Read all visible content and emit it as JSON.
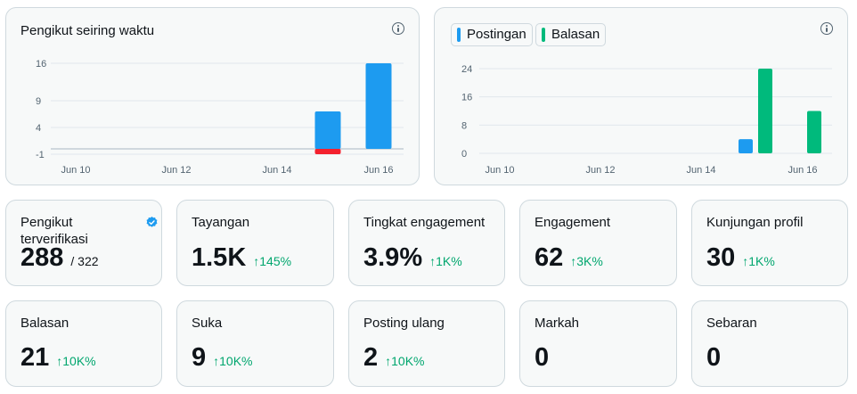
{
  "followers_chart": {
    "title": "Pengikut seiring waktu",
    "icon": "info-icon",
    "chart_data": {
      "type": "bar",
      "y_ticks": [
        16,
        9,
        4,
        -1
      ],
      "x_labels": [
        "Jun 10",
        "Jun 12",
        "Jun 14",
        "Jun 16"
      ],
      "series": [
        {
          "values_by_day": {
            "Jun 15": 7,
            "Jun 16": 16
          },
          "color": "#1d9bf0"
        },
        {
          "values_by_day": {
            "Jun 15": -1
          },
          "color": "#f4212e"
        }
      ],
      "grid": true
    }
  },
  "activity_chart": {
    "icon": "info-icon",
    "legend": [
      {
        "label": "Postingan",
        "color": "#1d9bf0"
      },
      {
        "label": "Balasan",
        "color": "#00ba7c"
      }
    ],
    "chart_data": {
      "type": "bar",
      "y_ticks": [
        24,
        16,
        8,
        0
      ],
      "x_labels": [
        "Jun 10",
        "Jun 12",
        "Jun 14",
        "Jun 16"
      ],
      "series": [
        {
          "name": "Postingan",
          "values_by_day": {
            "Jun 15": 4
          },
          "color": "#1d9bf0"
        },
        {
          "name": "Balasan",
          "values_by_day": {
            "Jun 15": 24,
            "Jun 16": 12
          },
          "color": "#00ba7c"
        }
      ],
      "grid": true
    }
  },
  "stats": [
    {
      "label": "Pengikut terverifikasi",
      "value": "288",
      "sub": "/ 322",
      "icon": "verified-badge-icon"
    },
    {
      "label": "Tayangan",
      "value": "1.5K",
      "delta": "145%"
    },
    {
      "label": "Tingkat engagement",
      "value": "3.9%",
      "delta": "1K%"
    },
    {
      "label": "Engagement",
      "value": "62",
      "delta": "3K%"
    },
    {
      "label": "Kunjungan profil",
      "value": "30",
      "delta": "1K%"
    },
    {
      "label": "Balasan",
      "value": "21",
      "delta": "10K%"
    },
    {
      "label": "Suka",
      "value": "9",
      "delta": "10K%"
    },
    {
      "label": "Posting ulang",
      "value": "2",
      "delta": "10K%"
    },
    {
      "label": "Markah",
      "value": "0"
    },
    {
      "label": "Sebaran",
      "value": "0"
    }
  ],
  "delta_arrow": "↑",
  "colors": {
    "accent_blue": "#1d9bf0",
    "green": "#00ba7c",
    "red": "#f4212e",
    "delta_green": "#00a66e"
  }
}
